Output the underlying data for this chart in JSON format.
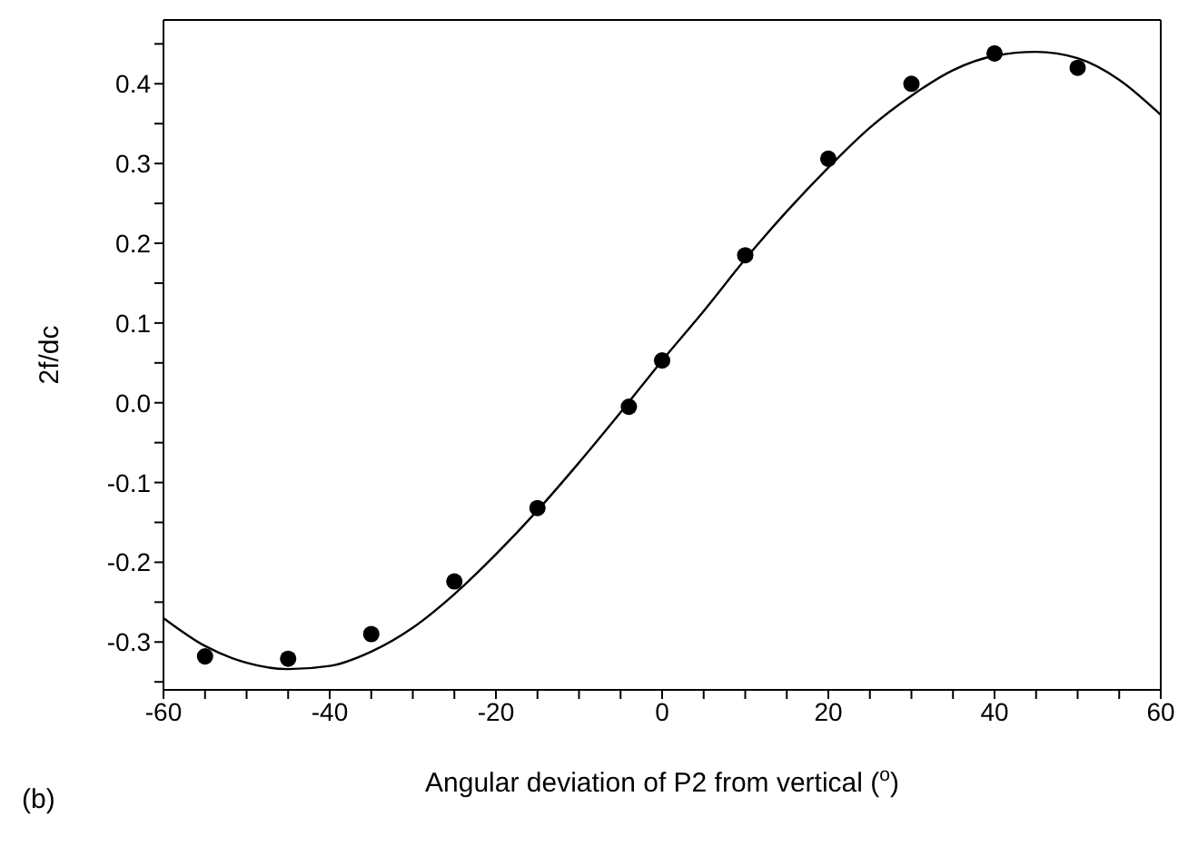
{
  "chart_data": {
    "type": "scatter",
    "xlabel": "Angular deviation of P2 from vertical ($^{o}$)",
    "ylabel": "2f/dc",
    "annotations": [
      "(b)"
    ],
    "xlim": [
      -60,
      60
    ],
    "xticks": [
      -60,
      {
        "value": -55,
        "label": null
      },
      {
        "value": -50,
        "label": null
      },
      {
        "value": -45,
        "label": null
      },
      -40,
      {
        "value": -35,
        "label": null
      },
      {
        "value": -30,
        "label": null
      },
      {
        "value": -25,
        "label": null
      },
      -20,
      {
        "value": -15,
        "label": null
      },
      {
        "value": -10,
        "label": null
      },
      {
        "value": -5,
        "label": null
      },
      0,
      {
        "value": 5,
        "label": null
      },
      {
        "value": 10,
        "label": null
      },
      {
        "value": 15,
        "label": null
      },
      20,
      {
        "value": 25,
        "label": null
      },
      {
        "value": 30,
        "label": null
      },
      {
        "value": 35,
        "label": null
      },
      40,
      {
        "value": 45,
        "label": null
      },
      {
        "value": 50,
        "label": null
      },
      {
        "value": 55,
        "label": null
      },
      60
    ],
    "ylim": [
      -0.36,
      0.48
    ],
    "yticks": [
      {
        "value": -0.35,
        "label": null
      },
      {
        "value": -0.3,
        "label": "-0.3"
      },
      {
        "value": -0.25,
        "label": null
      },
      {
        "value": -0.2,
        "label": "-0.2"
      },
      {
        "value": -0.15,
        "label": null
      },
      {
        "value": -0.1,
        "label": "-0.1"
      },
      {
        "value": -0.05,
        "label": null
      },
      {
        "value": 0,
        "label": "0.0"
      },
      {
        "value": 0.05,
        "label": null
      },
      {
        "value": 0.1,
        "label": "0.1"
      },
      {
        "value": 0.15,
        "label": null
      },
      {
        "value": 0.2,
        "label": "0.2"
      },
      {
        "value": 0.25,
        "label": null
      },
      {
        "value": 0.3,
        "label": "0.3"
      },
      {
        "value": 0.35,
        "label": null
      },
      {
        "value": 0.4,
        "label": "0.4"
      },
      {
        "value": 0.45,
        "label": null
      }
    ],
    "legend": false,
    "series": [
      {
        "marker": "circle",
        "color": "#000000",
        "x": [
          -55,
          -45,
          -35,
          -25,
          -15,
          -4,
          0,
          10,
          20,
          30,
          40,
          50
        ],
        "values": [
          -0.318,
          -0.321,
          -0.29,
          -0.224,
          -0.132,
          -0.005,
          0.053,
          0.185,
          0.306,
          0.4,
          0.438,
          0.42
        ]
      },
      {
        "type": "line",
        "marker": "none",
        "line_style": "solid",
        "color": "#000000",
        "x": [
          -60,
          -55,
          -50,
          -45,
          -40,
          -35,
          -30,
          -25,
          -20,
          -15,
          -10,
          -5,
          0,
          5,
          10,
          15,
          20,
          25,
          30,
          35,
          40,
          45,
          50,
          55,
          60
        ],
        "values": [
          -0.27,
          -0.305,
          -0.326,
          -0.334,
          -0.33,
          -0.312,
          -0.282,
          -0.24,
          -0.19,
          -0.135,
          -0.075,
          -0.012,
          0.053,
          0.115,
          0.18,
          0.24,
          0.295,
          0.345,
          0.385,
          0.417,
          0.435,
          0.44,
          0.432,
          0.405,
          0.361
        ]
      }
    ]
  }
}
